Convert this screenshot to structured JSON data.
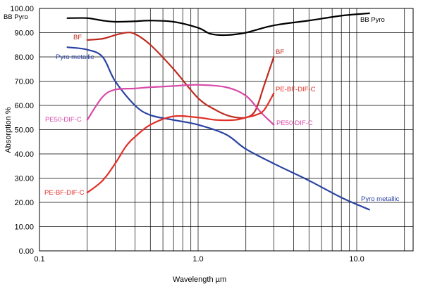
{
  "chart_data": {
    "type": "line",
    "x_scale": "log",
    "xlim": [
      0.1,
      20
    ],
    "ylim": [
      0,
      100
    ],
    "xlabel": "Wavelength µm",
    "ylabel": "Absorption %",
    "grid": true,
    "y_ticks": [
      "0.00",
      "10.00",
      "20.00",
      "30.00",
      "40.00",
      "50.00",
      "60.00",
      "70.00",
      "80.00",
      "90.00",
      "100.00"
    ],
    "x_ticks": [
      "0.1",
      "1.0",
      "10.0"
    ],
    "series": [
      {
        "name": "BB Pyro",
        "color": "#000000",
        "x": [
          0.15,
          0.2,
          0.25,
          0.3,
          0.4,
          0.5,
          0.7,
          1.0,
          1.2,
          1.5,
          2,
          3,
          5,
          8,
          12
        ],
        "y": [
          96,
          96,
          95,
          94.5,
          94.7,
          95,
          94.5,
          92,
          89.5,
          89,
          90,
          93,
          95,
          97,
          98
        ]
      },
      {
        "name": "BF",
        "color": "#bf2a1e",
        "x": [
          0.2,
          0.25,
          0.3,
          0.35,
          0.4,
          0.5,
          0.7,
          1.0,
          1.3,
          1.6,
          2.0,
          2.3,
          2.6,
          3.0
        ],
        "y": [
          87,
          87.5,
          89,
          90,
          89.5,
          85,
          75,
          63,
          58,
          55.5,
          55,
          58,
          68,
          80
        ]
      },
      {
        "name": "Pyro metallic",
        "color": "#2a43a3",
        "x": [
          0.15,
          0.2,
          0.25,
          0.3,
          0.4,
          0.5,
          0.7,
          1.0,
          1.5,
          2,
          3,
          5,
          8,
          12
        ],
        "y": [
          84,
          83,
          80,
          70,
          60,
          56,
          54,
          52,
          48,
          42,
          36,
          29,
          22,
          17
        ]
      },
      {
        "name": "PE50-DIF-C",
        "color": "#d94aa8",
        "x": [
          0.2,
          0.25,
          0.3,
          0.4,
          0.5,
          0.7,
          1.0,
          1.5,
          2.0,
          2.5,
          3.0
        ],
        "y": [
          54,
          63.5,
          66.5,
          67,
          67.5,
          68,
          68.5,
          67.5,
          64,
          57,
          52
        ]
      },
      {
        "name": "PE-BF-DIF-C",
        "color": "#e23028",
        "x": [
          0.2,
          0.25,
          0.3,
          0.35,
          0.4,
          0.5,
          0.7,
          1.0,
          1.3,
          1.7,
          2.0,
          2.3,
          2.6,
          3.0
        ],
        "y": [
          24,
          29,
          36,
          43,
          47,
          52,
          55.5,
          55,
          54,
          54,
          55,
          56,
          58,
          65
        ]
      }
    ],
    "labels": [
      {
        "text": "BB Pyro",
        "series": "BB Pyro"
      },
      {
        "text": "BB Pyro",
        "series": "BB Pyro"
      },
      {
        "text": "BF",
        "series": "BF"
      },
      {
        "text": "BF",
        "series": "BF"
      },
      {
        "text": "Pyro metallic",
        "series": "Pyro metallic"
      },
      {
        "text": "Pyro metallic",
        "series": "Pyro metallic"
      },
      {
        "text": "PE-BF-DIF-C",
        "series": "PE-BF-DIF-C"
      },
      {
        "text": "PE-BF-DIF-C",
        "series": "PE-BF-DIF-C"
      },
      {
        "text": "PE50-DIF-C",
        "series": "PE50-DIF-C"
      },
      {
        "text": "PE50-DIF-C",
        "series": "PE50-DIF-C"
      }
    ]
  }
}
